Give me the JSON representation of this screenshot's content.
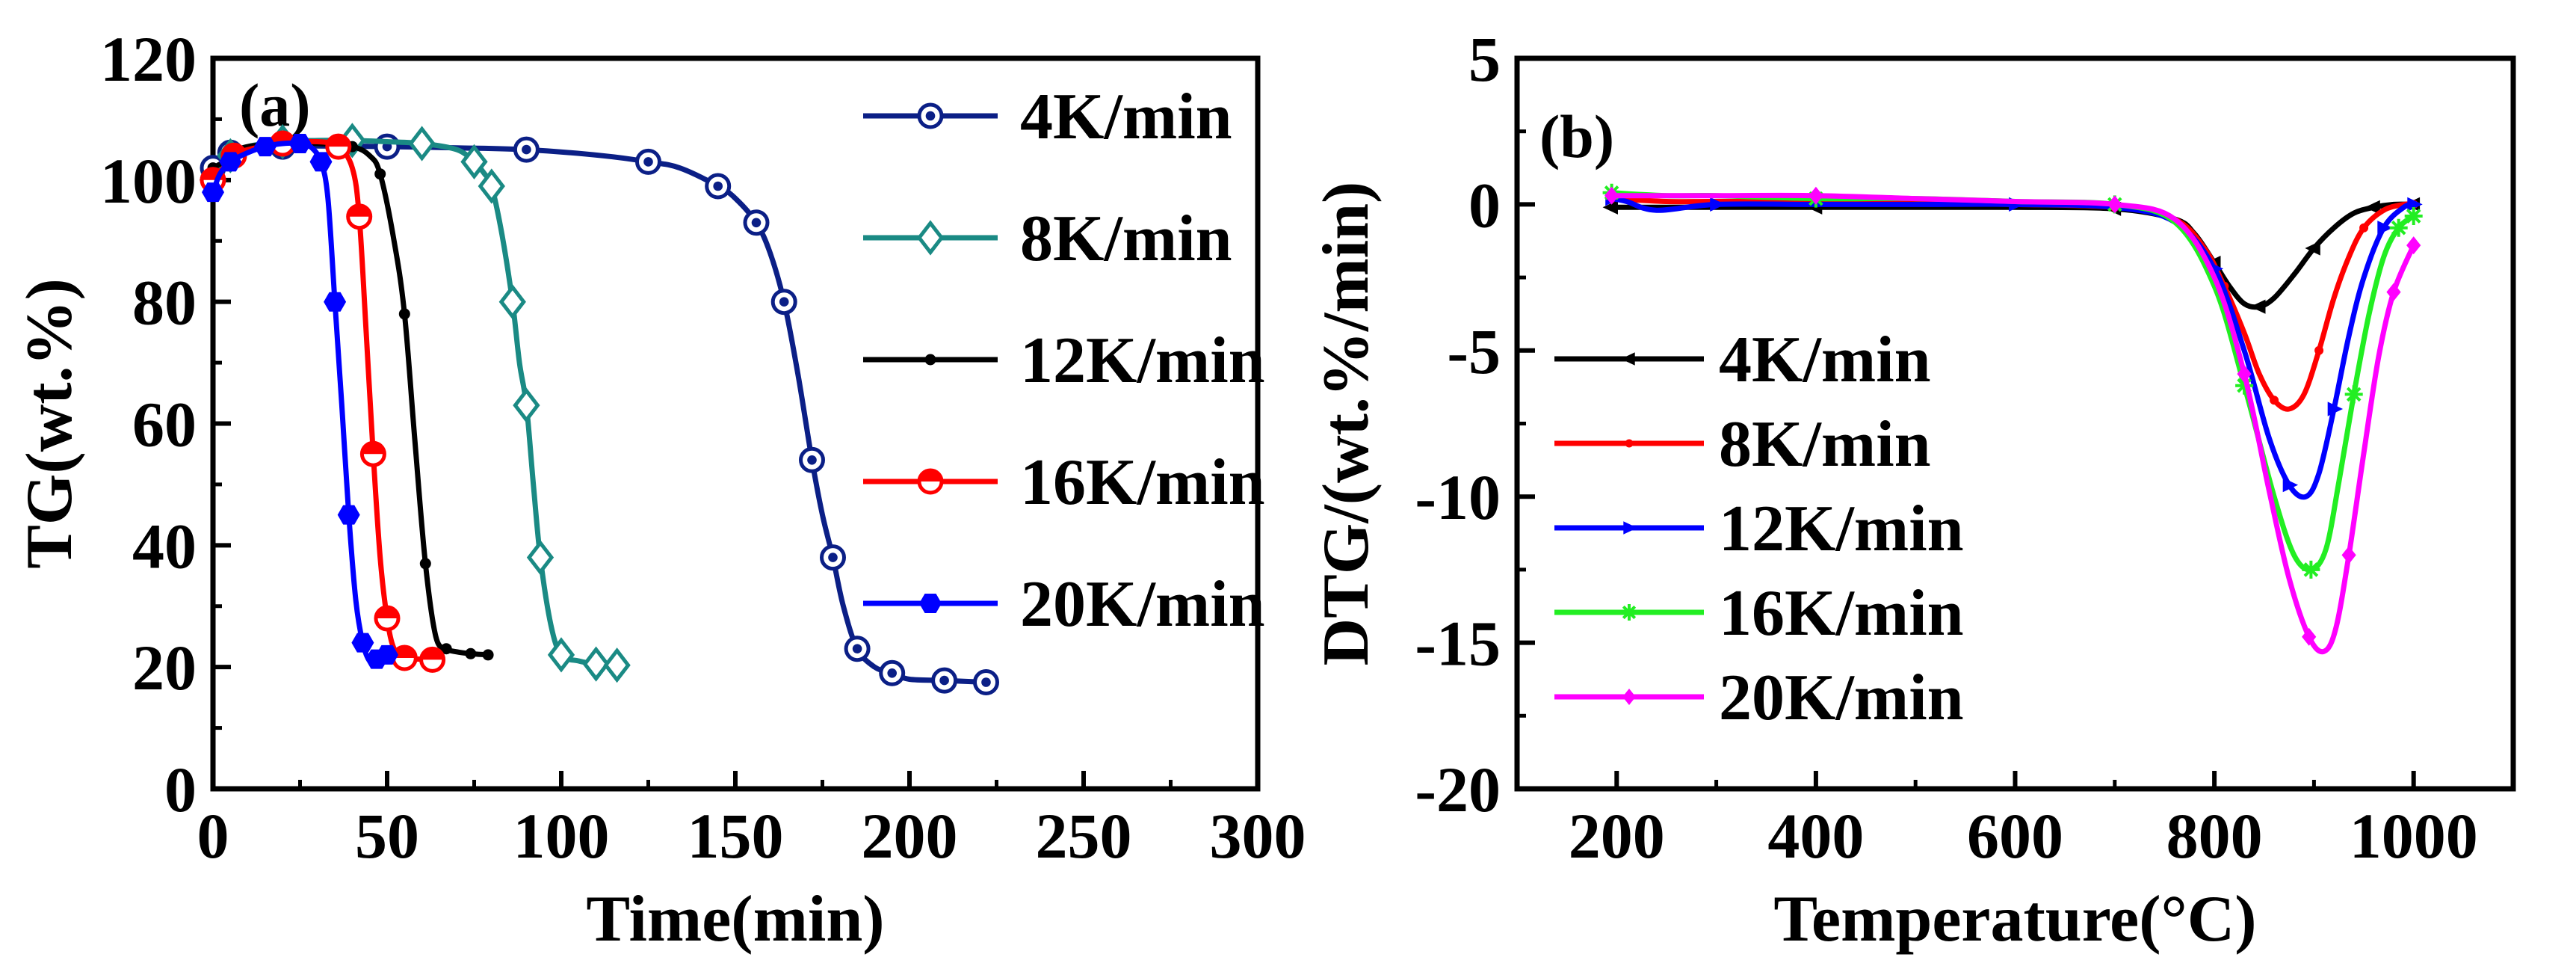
{
  "chart_data": [
    {
      "id": "a",
      "type": "line",
      "panel_label": "(a)",
      "xlabel": "Time(min)",
      "ylabel": "TG(wt.%)",
      "xlim": [
        0,
        300
      ],
      "ylim": [
        0,
        120
      ],
      "xticks": [
        0,
        50,
        100,
        150,
        200,
        250,
        300
      ],
      "yticks": [
        0,
        20,
        40,
        60,
        80,
        100,
        120
      ],
      "legend_position": "top-right",
      "series": [
        {
          "name": "4K/min",
          "color": "#0b1f86",
          "marker": "circle-open",
          "x": [
            0,
            2,
            5,
            10,
            20,
            30,
            50,
            70,
            90,
            112,
            125,
            134,
            145,
            150,
            156,
            160,
            164,
            168,
            172,
            175,
            178,
            181,
            185,
            190,
            195,
            200,
            210,
            222
          ],
          "y": [
            102,
            103.5,
            104.5,
            105,
            105.5,
            105.6,
            105.5,
            105.3,
            105,
            104,
            103,
            102,
            99,
            97,
            93,
            88,
            80,
            68,
            54,
            45,
            38,
            30,
            23,
            20,
            19,
            18,
            17.8,
            17.5
          ]
        },
        {
          "name": "8K/min",
          "color": "#1a8a84",
          "marker": "diamond-open",
          "x": [
            0,
            2,
            5,
            10,
            20,
            30,
            40,
            50,
            60,
            70,
            75,
            78,
            80,
            83,
            86,
            88,
            90,
            92,
            94,
            97,
            100,
            105,
            110,
            116
          ],
          "y": [
            100,
            102,
            104,
            105.5,
            106.3,
            106.5,
            106.5,
            106.3,
            106,
            105,
            103,
            101,
            99,
            91,
            80,
            70,
            63,
            50,
            38,
            27,
            22,
            21,
            20.5,
            20.3
          ]
        },
        {
          "name": "12K/min",
          "color": "#000000",
          "marker": "dot",
          "x": [
            0,
            3,
            6,
            10,
            20,
            30,
            40,
            45,
            48,
            52,
            55,
            58,
            61,
            64,
            67,
            70,
            74,
            79
          ],
          "y": [
            102,
            103,
            104.5,
            105.5,
            106,
            106,
            105.5,
            104,
            101,
            90,
            78,
            57,
            37,
            25,
            23,
            22.5,
            22.2,
            22
          ]
        },
        {
          "name": "16K/min",
          "color": "#ff0000",
          "marker": "circle-half",
          "x": [
            0,
            3,
            6,
            10,
            20,
            30,
            36,
            40,
            42,
            44,
            46,
            48,
            50,
            52,
            55,
            60,
            63
          ],
          "y": [
            100,
            102,
            104,
            105,
            106,
            106.3,
            105.5,
            102,
            94,
            75,
            55,
            38,
            28,
            23,
            21.5,
            21.3,
            21.2
          ]
        },
        {
          "name": "20K/min",
          "color": "#0000ff",
          "marker": "hexagon-filled",
          "x": [
            0,
            2,
            5,
            10,
            15,
            20,
            25,
            28,
            31,
            33,
            35,
            37,
            39,
            41,
            43,
            45,
            47,
            50
          ],
          "y": [
            98,
            101,
            103,
            104.5,
            105.5,
            106,
            106,
            105.5,
            103,
            97,
            80,
            63,
            45,
            31,
            24,
            21,
            21.3,
            22
          ]
        }
      ]
    },
    {
      "id": "b",
      "type": "line",
      "panel_label": "(b)",
      "xlabel": "Temperature(°C)",
      "ylabel": "DTG/(wt.%/min)",
      "xlim": [
        100,
        1100
      ],
      "ylim": [
        -20,
        5
      ],
      "xticks": [
        200,
        400,
        600,
        800,
        1000
      ],
      "yticks": [
        -20,
        -15,
        -10,
        -5,
        0,
        5
      ],
      "legend_position": "middle-left",
      "series": [
        {
          "name": "4K/min",
          "color": "#000000",
          "marker": "triangle-left",
          "x": [
            195,
            250,
            300,
            400,
            500,
            600,
            700,
            760,
            780,
            800,
            815,
            830,
            845,
            860,
            880,
            900,
            920,
            940,
            960,
            980,
            1000
          ],
          "y": [
            -0.1,
            -0.1,
            -0.1,
            -0.1,
            -0.1,
            -0.1,
            -0.15,
            -0.5,
            -1.0,
            -2.0,
            -2.8,
            -3.4,
            -3.5,
            -3.2,
            -2.4,
            -1.5,
            -0.8,
            -0.3,
            -0.1,
            0,
            0
          ]
        },
        {
          "name": "8K/min",
          "color": "#ff0000",
          "marker": "dot",
          "x": [
            195,
            250,
            300,
            400,
            500,
            600,
            700,
            760,
            790,
            810,
            830,
            845,
            860,
            875,
            890,
            905,
            920,
            935,
            950,
            970,
            990,
            1000
          ],
          "y": [
            0.2,
            0.1,
            0.1,
            0.1,
            0.05,
            0,
            -0.1,
            -0.5,
            -1.5,
            -2.8,
            -4.4,
            -5.8,
            -6.7,
            -7.0,
            -6.5,
            -5.0,
            -3.2,
            -1.8,
            -0.8,
            -0.2,
            0,
            0
          ]
        },
        {
          "name": "12K/min",
          "color": "#0000ff",
          "marker": "triangle-right",
          "x": [
            195,
            210,
            240,
            300,
            400,
            500,
            600,
            700,
            760,
            800,
            830,
            855,
            875,
            892,
            905,
            920,
            935,
            950,
            970,
            990,
            1000
          ],
          "y": [
            0.2,
            0.1,
            -0.2,
            0,
            0,
            0,
            0,
            -0.1,
            -0.6,
            -2.2,
            -5.0,
            -8.0,
            -9.6,
            -10.0,
            -9.2,
            -7.0,
            -4.5,
            -2.5,
            -0.8,
            -0.1,
            0
          ]
        },
        {
          "name": "16K/min",
          "color": "#22ee22",
          "marker": "star",
          "x": [
            195,
            250,
            300,
            400,
            500,
            600,
            700,
            760,
            800,
            830,
            860,
            880,
            897,
            912,
            925,
            940,
            955,
            970,
            985,
            1000
          ],
          "y": [
            0.4,
            0.3,
            0.3,
            0.2,
            0.2,
            0.1,
            0,
            -0.6,
            -2.8,
            -6.2,
            -10.0,
            -12.0,
            -12.5,
            -11.8,
            -9.5,
            -6.5,
            -3.8,
            -1.8,
            -0.8,
            -0.4
          ]
        },
        {
          "name": "20K/min",
          "color": "#ff00ff",
          "marker": "diamond",
          "x": [
            195,
            250,
            300,
            400,
            500,
            600,
            700,
            760,
            800,
            830,
            855,
            875,
            895,
            910,
            922,
            935,
            950,
            965,
            980,
            1000
          ],
          "y": [
            0.3,
            0.3,
            0.3,
            0.3,
            0.2,
            0.1,
            0,
            -0.5,
            -2.5,
            -5.8,
            -9.8,
            -12.8,
            -14.8,
            -15.3,
            -14.5,
            -12.0,
            -8.5,
            -5.2,
            -3.0,
            -1.4
          ]
        }
      ]
    }
  ]
}
